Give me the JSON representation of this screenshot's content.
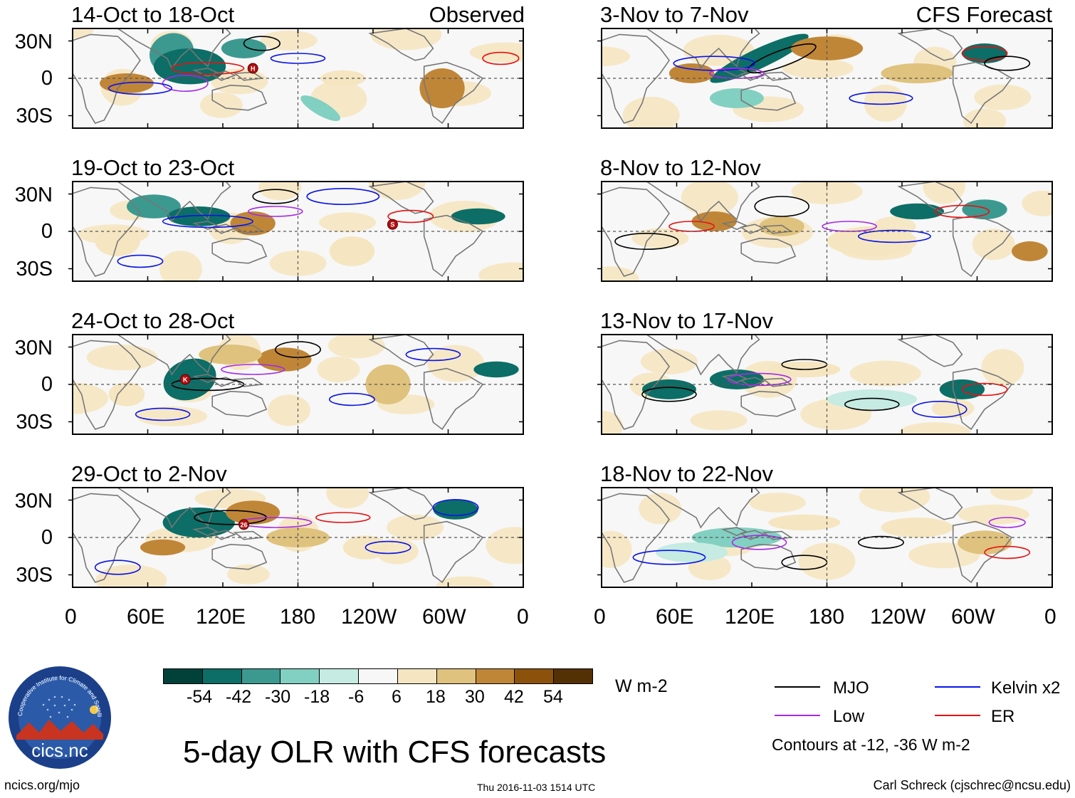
{
  "title": "5-day OLR with CFS forecasts",
  "units": "W m-2",
  "panel_tags": {
    "observed": "Observed",
    "forecast": "CFS Forecast"
  },
  "panels_observed": [
    {
      "label": "14-Oct to 18-Oct",
      "storms": [
        {
          "mark": "H"
        }
      ]
    },
    {
      "label": "19-Oct to 23-Oct",
      "storms": [
        {
          "mark": "S"
        }
      ]
    },
    {
      "label": "24-Oct to 28-Oct",
      "storms": [
        {
          "mark": "K"
        }
      ]
    },
    {
      "label": "29-Oct to 2-Nov",
      "storms": [
        {
          "mark": "26"
        }
      ]
    }
  ],
  "panels_forecast": [
    {
      "label": "3-Nov to 7-Nov"
    },
    {
      "label": "8-Nov to 12-Nov"
    },
    {
      "label": "13-Nov to 17-Nov"
    },
    {
      "label": "18-Nov to 22-Nov"
    }
  ],
  "lat_ticks": [
    "30N",
    "0",
    "30S"
  ],
  "lon_ticks": [
    "0",
    "60E",
    "120E",
    "180",
    "120W",
    "60W",
    "0"
  ],
  "colorbar": {
    "labels": [
      "-54",
      "-42",
      "-30",
      "-18",
      "-6",
      "6",
      "18",
      "30",
      "42",
      "54"
    ],
    "colors": [
      "#01413a",
      "#0c6e66",
      "#3c9990",
      "#82d0c1",
      "#c5ebe2",
      "#f7f7f7",
      "#f5e6c1",
      "#dfc27d",
      "#c08638",
      "#8c520c",
      "#543005"
    ]
  },
  "legend": {
    "items": [
      {
        "label": "MJO",
        "color": "#000000"
      },
      {
        "label": "Kelvin x2",
        "color": "#0a14e6"
      },
      {
        "label": "Low",
        "color": "#a52ae8"
      },
      {
        "label": "ER",
        "color": "#e61212"
      }
    ],
    "note": "Contours at -12, -36 W m-2"
  },
  "logo": {
    "name": "cics.nc",
    "ring_text": "Cooperative Institute for Climate and Satellites"
  },
  "footer": {
    "url": "ncics.org/mjo",
    "timestamp": "Thu 2016-11-03 1514 UTC",
    "author": "Carl Schreck (cjschrec@ncsu.edu)"
  }
}
